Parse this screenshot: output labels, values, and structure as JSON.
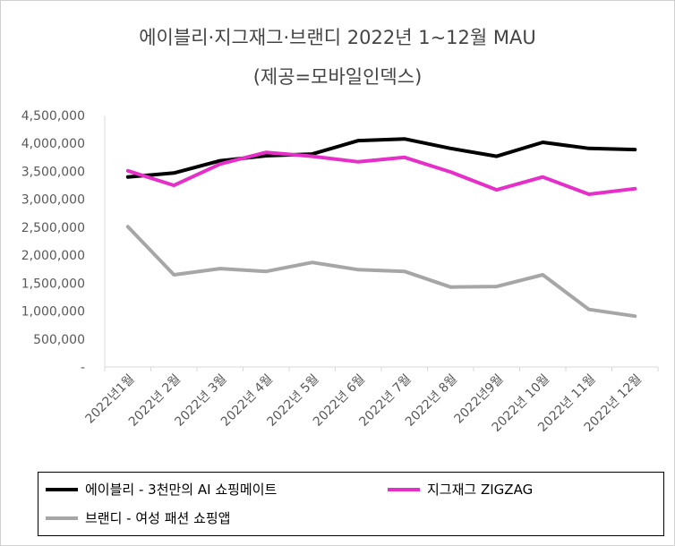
{
  "chart_data": {
    "type": "line",
    "title": "에이블리·지그재그·브랜디 2022년 1~12월 MAU",
    "subtitle": "(제공=모바일인덱스)",
    "categories": [
      "2022년1월",
      "2022년 2월",
      "2022년 3월",
      "2022년 4월",
      "2022년 5월",
      "2022년 6월",
      "2022년 7월",
      "2022년 8월",
      "2022년9월",
      "2022년 10월",
      "2022년 11월",
      "2022년 12월"
    ],
    "yticks": [
      "-",
      "500,000",
      "1,000,000",
      "1,500,000",
      "2,000,000",
      "2,500,000",
      "3,000,000",
      "3,500,000",
      "4,000,000",
      "4,500,000"
    ],
    "ylim": [
      0,
      4500000
    ],
    "grid": false,
    "legend_position": "bottom",
    "series": [
      {
        "name": "에이블리 - 3천만의 AI 쇼핑메이트",
        "color": "#000000",
        "values": [
          3400000,
          3470000,
          3690000,
          3780000,
          3810000,
          4050000,
          4080000,
          3910000,
          3770000,
          4020000,
          3910000,
          3890000
        ]
      },
      {
        "name": "지그재그 ZIGZAG",
        "color": "#e62fc8",
        "values": [
          3510000,
          3250000,
          3630000,
          3840000,
          3770000,
          3670000,
          3750000,
          3490000,
          3170000,
          3400000,
          3090000,
          3190000
        ]
      },
      {
        "name": "브랜디 - 여성 패션 쇼핑앱",
        "color": "#a6a6a6",
        "values": [
          2510000,
          1650000,
          1760000,
          1710000,
          1870000,
          1740000,
          1710000,
          1430000,
          1440000,
          1650000,
          1030000,
          910000
        ]
      }
    ]
  }
}
